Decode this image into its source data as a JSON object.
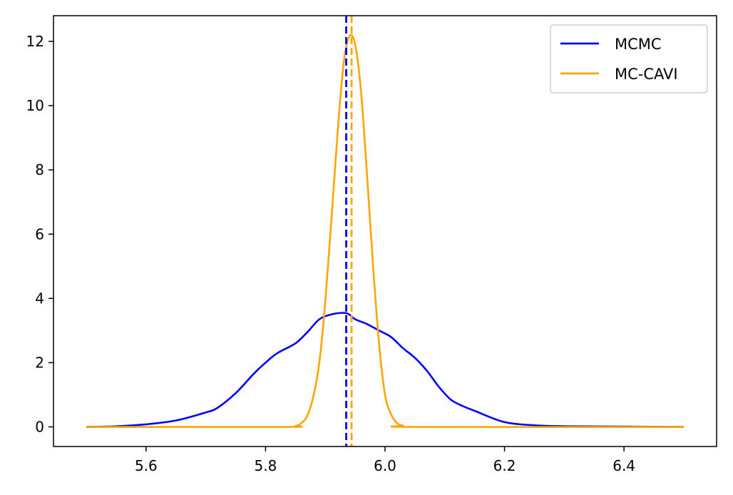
{
  "chart_data": {
    "type": "line",
    "title": "",
    "xlabel": "",
    "ylabel": "",
    "xlim": [
      5.445,
      6.555
    ],
    "ylim": [
      -0.61,
      12.8
    ],
    "grid": false,
    "legend_placement": "top-right",
    "xticks": [
      "5.6",
      "5.8",
      "6.0",
      "6.2",
      "6.4"
    ],
    "yticks": [
      "0",
      "2",
      "4",
      "6",
      "8",
      "10",
      "12"
    ],
    "series": [
      {
        "name": "MCMC",
        "color": "#0000ff",
        "x": [
          5.5,
          5.55,
          5.6,
          5.65,
          5.7,
          5.72,
          5.75,
          5.78,
          5.8,
          5.82,
          5.85,
          5.87,
          5.89,
          5.91,
          5.93,
          5.94,
          5.95,
          5.97,
          5.99,
          6.01,
          6.03,
          6.05,
          6.07,
          6.09,
          6.11,
          6.13,
          6.15,
          6.2,
          6.25,
          6.3,
          6.4,
          6.5
        ],
        "y": [
          0.0,
          0.02,
          0.08,
          0.2,
          0.45,
          0.6,
          1.05,
          1.65,
          2.0,
          2.3,
          2.6,
          2.95,
          3.35,
          3.5,
          3.55,
          3.5,
          3.35,
          3.2,
          3.0,
          2.8,
          2.45,
          2.15,
          1.75,
          1.25,
          0.85,
          0.65,
          0.5,
          0.15,
          0.05,
          0.02,
          0.01,
          0.0
        ]
      },
      {
        "name": "MC-CAVI",
        "color": "#ffa500",
        "x": [
          5.5,
          5.83,
          5.85,
          5.86,
          5.87,
          5.88,
          5.89,
          5.9,
          5.91,
          5.92,
          5.93,
          5.94,
          5.95,
          5.96,
          5.97,
          5.98,
          5.99,
          6.0,
          6.01,
          6.02,
          6.03,
          6.05,
          6.5
        ],
        "y": [
          0.0,
          0.0,
          0.03,
          0.12,
          0.35,
          0.95,
          2.0,
          3.9,
          6.4,
          9.0,
          11.2,
          12.15,
          11.9,
          10.4,
          7.8,
          5.0,
          2.6,
          1.0,
          0.4,
          0.12,
          0.04,
          0.0,
          0.0
        ]
      }
    ],
    "vlines": [
      {
        "series": "MCMC",
        "x": 5.935,
        "color": "#0000ff",
        "style": "dashed"
      },
      {
        "series": "MC-CAVI",
        "x": 5.944,
        "color": "#ffa500",
        "style": "dashed"
      }
    ]
  }
}
